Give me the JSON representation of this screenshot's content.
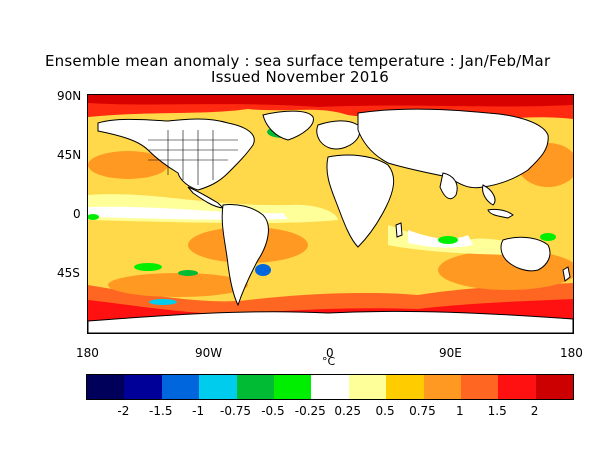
{
  "title_line1": "Ensemble mean anomaly : sea surface temperature : Jan/Feb/Mar",
  "title_line2": "Issued November 2016",
  "lat_labels": [
    "90N",
    "45N",
    "0",
    "45S"
  ],
  "lon_labels": [
    "180",
    "90W",
    "0",
    "90E",
    "180"
  ],
  "unit_label": "°C",
  "colorbar": {
    "colors": [
      "#00005a",
      "#000099",
      "#0066dd",
      "#00ccee",
      "#00bb33",
      "#00ee00",
      "#ffffff",
      "#ffff99",
      "#ffcc00",
      "#ff9922",
      "#ff6622",
      "#ff1111",
      "#cc0000"
    ],
    "labels": [
      "-2",
      "-1.5",
      "-1",
      "-0.75",
      "-0.5",
      "-0.25",
      "0.25",
      "0.5",
      "0.75",
      "1",
      "1.5",
      "2"
    ]
  },
  "colors": {
    "land": "#ffffff",
    "ocean_base": "#ffd94a",
    "coastline": "#000000"
  }
}
